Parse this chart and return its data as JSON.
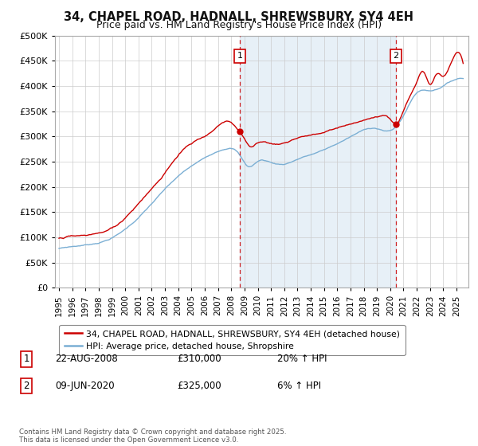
{
  "title_line1": "34, CHAPEL ROAD, HADNALL, SHREWSBURY, SY4 4EH",
  "title_line2": "Price paid vs. HM Land Registry's House Price Index (HPI)",
  "legend_label1": "34, CHAPEL ROAD, HADNALL, SHREWSBURY, SY4 4EH (detached house)",
  "legend_label2": "HPI: Average price, detached house, Shropshire",
  "annotation1_date": "22-AUG-2008",
  "annotation1_price": "£310,000",
  "annotation1_hpi": "20% ↑ HPI",
  "annotation2_date": "09-JUN-2020",
  "annotation2_price": "£325,000",
  "annotation2_hpi": "6% ↑ HPI",
  "footer": "Contains HM Land Registry data © Crown copyright and database right 2025.\nThis data is licensed under the Open Government Licence v3.0.",
  "sale1_year": 2008.64,
  "sale1_price": 310000,
  "sale2_year": 2020.44,
  "sale2_price": 325000,
  "line1_color": "#cc0000",
  "line2_color": "#7bafd4",
  "fill_color": "#d6e8f5",
  "vline_color": "#cc0000",
  "ylim_min": 0,
  "ylim_max": 500000,
  "background_color": "#ffffff",
  "grid_color": "#cccccc",
  "title_fontsize": 10.5,
  "subtitle_fontsize": 9
}
